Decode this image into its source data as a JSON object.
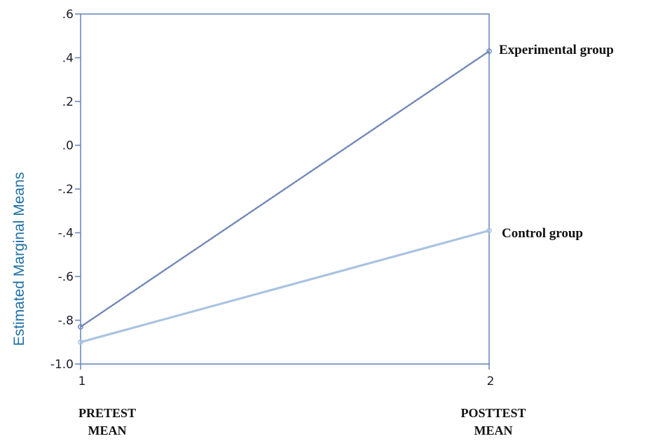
{
  "chart_data": {
    "type": "line",
    "x": [
      1,
      2
    ],
    "x_tick_labels": [
      "1",
      "2"
    ],
    "category_labels": [
      [
        "PRETEST",
        "MEAN"
      ],
      [
        "POSTTEST",
        "MEAN"
      ]
    ],
    "ylabel": "Estimated Marginal Means",
    "ylim": [
      -1.0,
      0.6
    ],
    "y_ticks": [
      0.6,
      0.4,
      0.2,
      0.0,
      -0.2,
      -0.4,
      -0.6,
      -0.8,
      -1.0
    ],
    "y_tick_labels": [
      ".6",
      ".4",
      ".2",
      ".0",
      "-.2",
      "-.4",
      "-.6",
      "-.8",
      "-1.0"
    ],
    "series": [
      {
        "name": "Experimental group",
        "values": [
          -0.83,
          0.43
        ],
        "color": "#6f86b8",
        "dash": "dotted"
      },
      {
        "name": "Control group",
        "values": [
          -0.9,
          -0.39
        ],
        "color": "#a9c4e0",
        "dash": "solid"
      }
    ],
    "grid": false,
    "legend": "right, labels at line ends"
  }
}
